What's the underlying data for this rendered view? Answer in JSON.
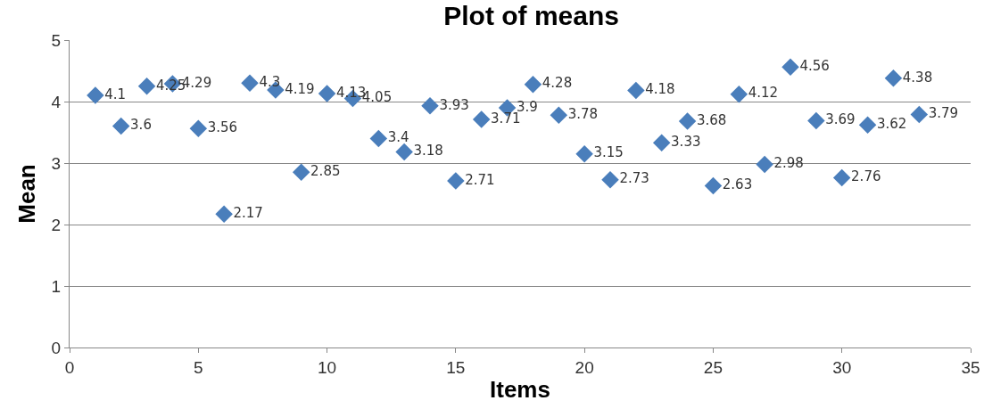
{
  "chart_data": {
    "type": "scatter",
    "title": "Plot of means",
    "xlabel": "Items",
    "ylabel": "Mean",
    "x": [
      1,
      2,
      3,
      4,
      5,
      6,
      7,
      8,
      9,
      10,
      11,
      12,
      13,
      14,
      15,
      16,
      17,
      18,
      19,
      20,
      21,
      22,
      23,
      24,
      25,
      26,
      27,
      28,
      29,
      30,
      31,
      32,
      33
    ],
    "series": [
      {
        "color": "#4a7ebb",
        "values": [
          4.1,
          3.6,
          4.25,
          4.29,
          3.56,
          2.17,
          4.3,
          4.19,
          2.85,
          4.13,
          4.05,
          3.4,
          3.18,
          3.93,
          2.71,
          3.71,
          3.9,
          4.28,
          3.78,
          3.15,
          2.73,
          4.18,
          3.33,
          3.68,
          2.63,
          4.12,
          2.98,
          4.56,
          3.69,
          2.76,
          3.62,
          4.38,
          3.79
        ]
      }
    ],
    "xlim": [
      0,
      35
    ],
    "xticks": [
      0,
      5,
      10,
      15,
      20,
      25,
      30,
      35
    ],
    "ylim": [
      0,
      5
    ],
    "yticks": [
      0,
      1,
      2,
      3,
      4,
      5
    ],
    "grid": "y",
    "marker": "diamond",
    "data_labels": true
  }
}
